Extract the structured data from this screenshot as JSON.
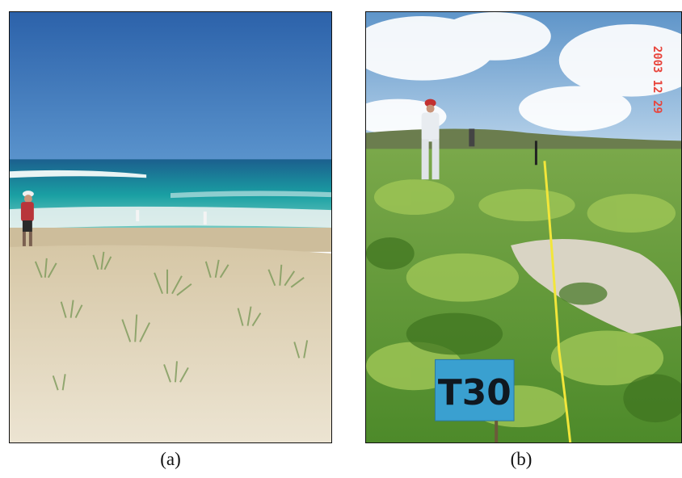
{
  "figure": {
    "panels": [
      {
        "caption": "(a)",
        "scene": "beach-dunes",
        "date_stamp": "",
        "colors": {
          "sky": "#2f6fb7",
          "sea": "#1f9fa6",
          "sand": "#e6dcc4",
          "stamp": "#e8453c"
        }
      },
      {
        "caption": "(b)",
        "scene": "dune-vegetation-transect",
        "date_stamp": "2003 12 29",
        "sign_label": "T30",
        "colors": {
          "sky": "#a9c9e6",
          "vegetation": "#6fa235",
          "sign": "#3aa0d0",
          "tape": "#f2e63a",
          "stamp": "#e8453c"
        }
      }
    ]
  }
}
